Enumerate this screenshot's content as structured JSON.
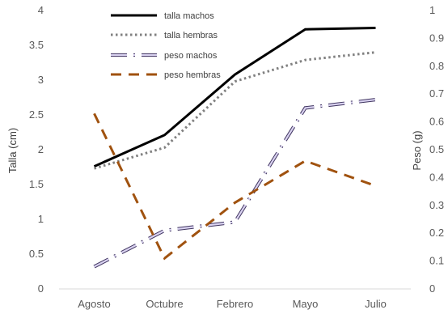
{
  "chart_data": {
    "type": "line",
    "categories": [
      "Agosto",
      "Octubre",
      "Febrero",
      "Mayo",
      "Julio"
    ],
    "ylabel_left": "Talla (cm)",
    "ylabel_right": "Peso (g)",
    "ylim_left": [
      0,
      4
    ],
    "ylim_right": [
      0,
      1
    ],
    "yticks_left": [
      "0",
      "0.5",
      "1",
      "1.5",
      "2",
      "2.5",
      "3",
      "3.5",
      "4"
    ],
    "yticks_right": [
      "0",
      "0.1",
      "0.2",
      "0.3",
      "0.4",
      "0.5",
      "0.6",
      "0.7",
      "0.8",
      "0.9",
      "1"
    ],
    "grid": false,
    "legend_position": "top-left",
    "series": [
      {
        "name": "talla machos",
        "axis": "left",
        "values": [
          1.76,
          2.21,
          3.08,
          3.73,
          3.75
        ],
        "color": "#000000",
        "style": "solid"
      },
      {
        "name": "talla hembras",
        "axis": "left",
        "values": [
          1.73,
          2.03,
          2.98,
          3.29,
          3.4
        ],
        "color": "#808080",
        "style": "dotted"
      },
      {
        "name": "peso machos",
        "axis": "right",
        "values": [
          0.08,
          0.21,
          0.24,
          0.65,
          0.68
        ],
        "color": "#7f6fa8",
        "style": "long-dash-dot"
      },
      {
        "name": "peso hembras",
        "axis": "right",
        "values": [
          0.63,
          0.11,
          0.31,
          0.46,
          0.37
        ],
        "color": "#a0520f",
        "style": "dashed"
      }
    ]
  }
}
